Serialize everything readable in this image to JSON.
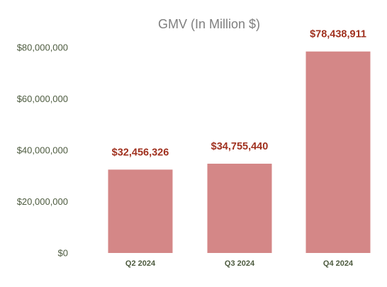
{
  "chart_data": {
    "type": "bar",
    "title": "GMV (In Million $)",
    "xlabel": "",
    "ylabel": "",
    "categories": [
      "Q2 2024",
      "Q3 2024",
      "Q4 2024"
    ],
    "values": [
      32456326,
      34755440,
      78438911
    ],
    "data_labels": [
      "$32,456,326",
      "$34,755,440",
      "$78,438,911"
    ],
    "y_tick_values": [
      0,
      20000000,
      40000000,
      60000000,
      80000000
    ],
    "y_tick_labels": [
      "$0",
      "$20,000,000",
      "$40,000,000",
      "$60,000,000",
      "$80,000,000"
    ],
    "ylim": [
      0,
      80000000
    ],
    "grid": false,
    "legend": "none",
    "colors": {
      "bar": "#d48787",
      "data_label": "#a0311f",
      "title": "#7f7f7f",
      "axis_text": "#4d5b3f"
    }
  }
}
